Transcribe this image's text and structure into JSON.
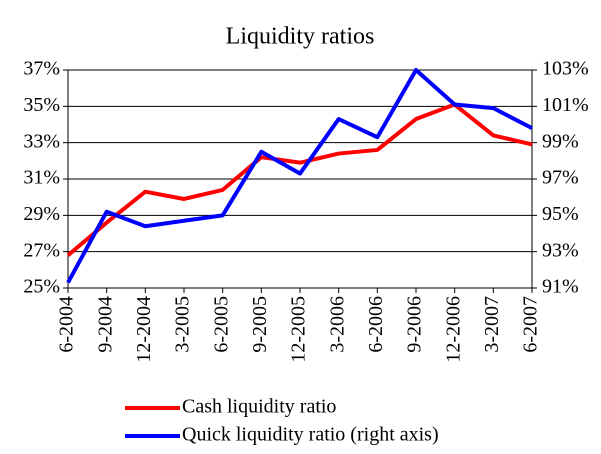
{
  "chart_data": {
    "type": "line",
    "title": "Liquidity ratios",
    "categories": [
      "6-2004",
      "9-2004",
      "12-2004",
      "3-2005",
      "6-2005",
      "9-2005",
      "12-2005",
      "3-2006",
      "6-2006",
      "9-2006",
      "12-2006",
      "3-2007",
      "6-2007"
    ],
    "series": [
      {
        "name": "Cash liquidity ratio",
        "color": "#ff0000",
        "values": [
          26.8,
          28.6,
          30.3,
          29.9,
          30.4,
          32.2,
          31.9,
          32.4,
          32.6,
          34.3,
          35.1,
          33.4,
          32.9
        ]
      },
      {
        "name": "Quick liquidity ratio (right axis)",
        "color": "#0000ff",
        "axis": "y2",
        "values": [
          91.3,
          95.2,
          94.4,
          94.7,
          95.0,
          98.5,
          97.3,
          100.3,
          99.3,
          103.0,
          101.1,
          100.9,
          99.8
        ]
      }
    ],
    "ylim": [
      25,
      37
    ],
    "yticks": [
      {
        "value": 25,
        "label": "25%"
      },
      {
        "value": 27,
        "label": "27%"
      },
      {
        "value": 29,
        "label": "29%"
      },
      {
        "value": 31,
        "label": "31%"
      },
      {
        "value": 33,
        "label": "33%"
      },
      {
        "value": 35,
        "label": "35%"
      },
      {
        "value": 37,
        "label": "37%"
      }
    ],
    "y2lim": [
      91,
      103
    ],
    "y2ticks": [
      {
        "value": 91,
        "label": "91%"
      },
      {
        "value": 93,
        "label": "93%"
      },
      {
        "value": 95,
        "label": "95%"
      },
      {
        "value": 97,
        "label": "97%"
      },
      {
        "value": 99,
        "label": "99%"
      },
      {
        "value": 101,
        "label": "101%"
      },
      {
        "value": 103,
        "label": "103%"
      }
    ],
    "grid": true
  }
}
